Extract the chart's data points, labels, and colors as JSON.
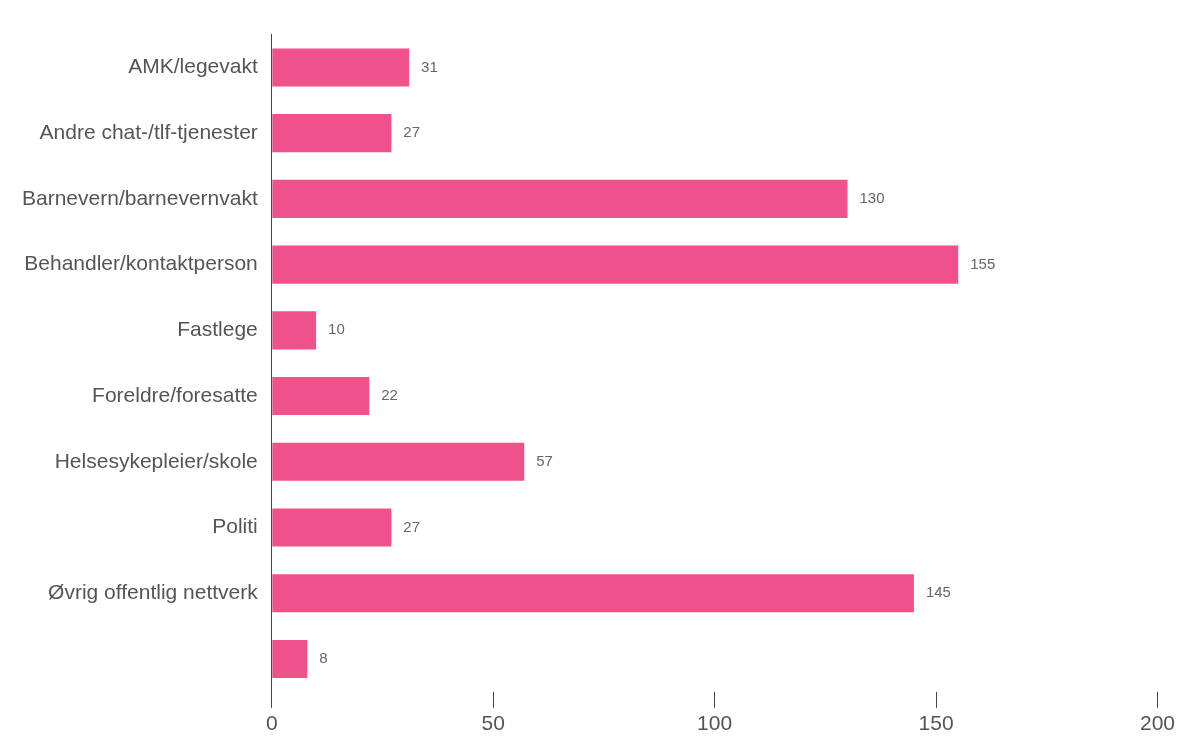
{
  "chart_data": {
    "type": "bar",
    "orientation": "horizontal",
    "categories": [
      "AMK/legevakt",
      "Andre chat-/tlf-tjenester",
      "Barnevern/barnevernvakt",
      "Behandler/kontaktperson",
      "Fastlege",
      "Foreldre/foresatte",
      "Helsesykepleier/skole",
      "Politi",
      "Øvrig offentlig nettverk",
      null
    ],
    "values": [
      31,
      27,
      130,
      155,
      10,
      22,
      57,
      27,
      145,
      8
    ],
    "color": "#ef518a",
    "xlim": [
      0,
      200
    ],
    "xticks": [
      0,
      50,
      100,
      150,
      200
    ],
    "data_labels": true,
    "grid": false,
    "legend": false
  }
}
